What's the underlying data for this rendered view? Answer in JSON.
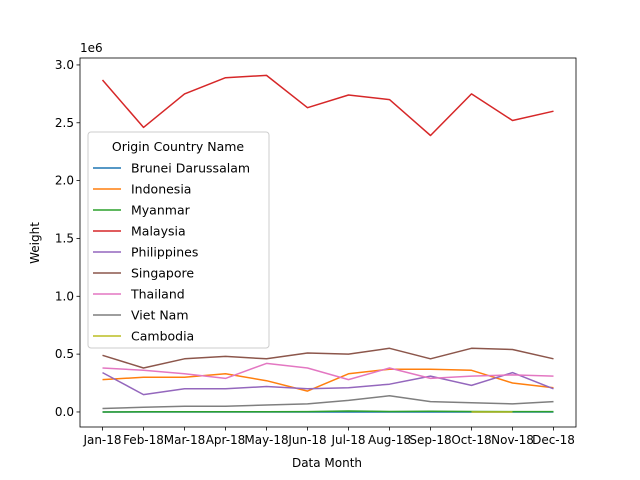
{
  "chart_data": {
    "type": "line",
    "xlabel": "Data Month",
    "ylabel": "Weight",
    "y_offset_label": "1e6",
    "ylim": [
      -0.13,
      3.06
    ],
    "y_ticks": [
      0.0,
      0.5,
      1.0,
      1.5,
      2.0,
      2.5,
      3.0
    ],
    "y_tick_labels": [
      "0.0",
      "0.5",
      "1.0",
      "1.5",
      "2.0",
      "2.5",
      "3.0"
    ],
    "categories": [
      "Jan-18",
      "Feb-18",
      "Mar-18",
      "Apr-18",
      "May-18",
      "Jun-18",
      "Jul-18",
      "Aug-18",
      "Sep-18",
      "Oct-18",
      "Nov-18",
      "Dec-18"
    ],
    "grid": false,
    "legend": {
      "title": "Origin Country Name",
      "position": "center-left"
    },
    "series": [
      {
        "name": "Brunei Darussalam",
        "color": "#1f77b4",
        "values": [
          0.0,
          0.0,
          0.0,
          0.0,
          0.0,
          0.0,
          0.0,
          0.0,
          0.0,
          0.0,
          0.0,
          0.0
        ]
      },
      {
        "name": "Indonesia",
        "color": "#ff7f0e",
        "values": [
          0.28,
          0.3,
          0.3,
          0.33,
          0.27,
          0.18,
          0.33,
          0.37,
          0.37,
          0.36,
          0.25,
          0.21
        ]
      },
      {
        "name": "Myanmar",
        "color": "#2ca02c",
        "values": [
          0.0,
          0.002,
          0.002,
          0.002,
          0.002,
          0.003,
          0.008,
          0.004,
          0.006,
          0.004,
          0.003,
          0.003
        ]
      },
      {
        "name": "Malaysia",
        "color": "#d62728",
        "values": [
          2.87,
          2.46,
          2.75,
          2.89,
          2.91,
          2.63,
          2.74,
          2.7,
          2.39,
          2.75,
          2.52,
          2.6
        ]
      },
      {
        "name": "Philippines",
        "color": "#9467bd",
        "values": [
          0.34,
          0.15,
          0.2,
          0.2,
          0.22,
          0.2,
          0.21,
          0.24,
          0.31,
          0.23,
          0.34,
          0.2
        ]
      },
      {
        "name": "Singapore",
        "color": "#8c564b",
        "values": [
          0.49,
          0.38,
          0.46,
          0.48,
          0.46,
          0.51,
          0.5,
          0.55,
          0.46,
          0.55,
          0.54,
          0.46
        ]
      },
      {
        "name": "Thailand",
        "color": "#e377c2",
        "values": [
          0.38,
          0.36,
          0.33,
          0.29,
          0.42,
          0.38,
          0.28,
          0.38,
          0.29,
          0.31,
          0.32,
          0.31
        ]
      },
      {
        "name": "Viet Nam",
        "color": "#7f7f7f",
        "values": [
          0.03,
          0.04,
          0.05,
          0.05,
          0.06,
          0.07,
          0.1,
          0.14,
          0.09,
          0.08,
          0.07,
          0.09
        ]
      },
      {
        "name": "Cambodia",
        "color": "#bcbd22",
        "values": [
          null,
          null,
          null,
          null,
          null,
          null,
          null,
          null,
          null,
          0.0,
          0.0,
          null
        ]
      }
    ]
  }
}
